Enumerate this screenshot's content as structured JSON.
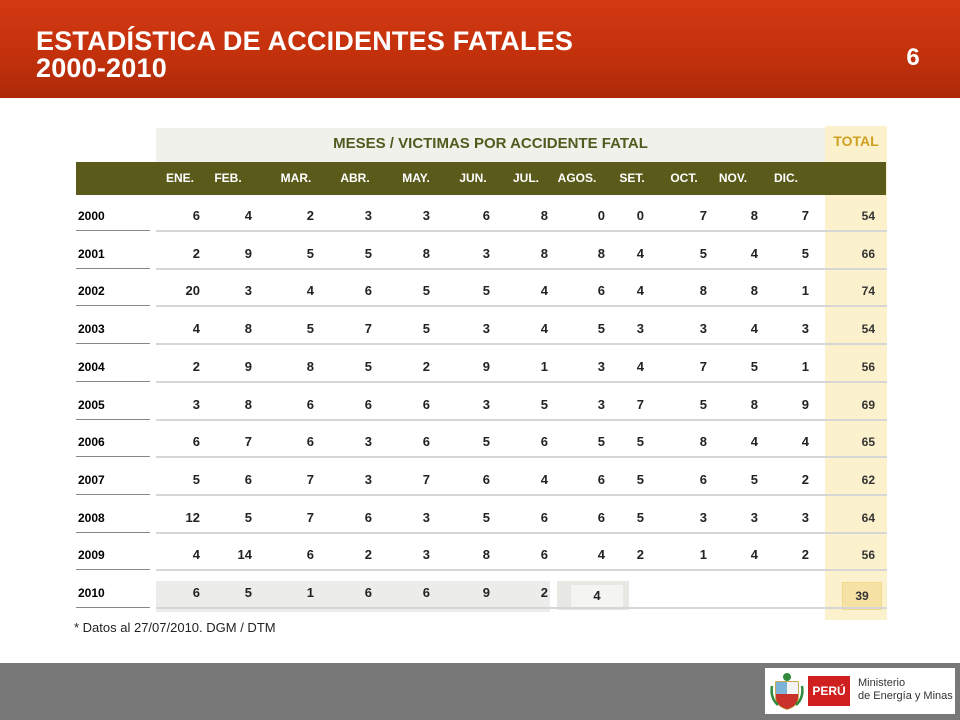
{
  "header": {
    "title_line1": "ESTADÍSTICA DE ACCIDENTES FATALES",
    "title_line2": "2000-2010",
    "slide_number": "6"
  },
  "table": {
    "months_title": "MESES / VICTIMAS POR ACCIDENTE FATAL",
    "total_title": "TOTAL",
    "months": [
      "ENE.",
      "FEB.",
      "MAR.",
      "ABR.",
      "MAY.",
      "JUN.",
      "JUL.",
      "AGOS.",
      "SET.",
      "OCT.",
      "NOV.",
      "DIC."
    ],
    "rows": [
      {
        "year": "2000",
        "values": [
          "6",
          "4",
          "2",
          "3",
          "3",
          "6",
          "8",
          "0",
          "0",
          "7",
          "8",
          "7"
        ],
        "total": "54"
      },
      {
        "year": "2001",
        "values": [
          "2",
          "9",
          "5",
          "5",
          "8",
          "3",
          "8",
          "8",
          "4",
          "5",
          "4",
          "5"
        ],
        "total": "66"
      },
      {
        "year": "2002",
        "values": [
          "20",
          "3",
          "4",
          "6",
          "5",
          "5",
          "4",
          "6",
          "4",
          "8",
          "8",
          "1"
        ],
        "total": "74"
      },
      {
        "year": "2003",
        "values": [
          "4",
          "8",
          "5",
          "7",
          "5",
          "3",
          "4",
          "5",
          "3",
          "3",
          "4",
          "3"
        ],
        "total": "54"
      },
      {
        "year": "2004",
        "values": [
          "2",
          "9",
          "8",
          "5",
          "2",
          "9",
          "1",
          "3",
          "4",
          "7",
          "5",
          "1"
        ],
        "total": "56"
      },
      {
        "year": "2005",
        "values": [
          "3",
          "8",
          "6",
          "6",
          "6",
          "3",
          "5",
          "3",
          "7",
          "5",
          "8",
          "9"
        ],
        "total": "69"
      },
      {
        "year": "2006",
        "values": [
          "6",
          "7",
          "6",
          "3",
          "6",
          "5",
          "6",
          "5",
          "5",
          "8",
          "4",
          "4"
        ],
        "total": "65"
      },
      {
        "year": "2007",
        "values": [
          "5",
          "6",
          "7",
          "3",
          "7",
          "6",
          "4",
          "6",
          "5",
          "6",
          "5",
          "2"
        ],
        "total": "62"
      },
      {
        "year": "2008",
        "values": [
          "12",
          "5",
          "7",
          "6",
          "3",
          "5",
          "6",
          "6",
          "5",
          "3",
          "3",
          "3"
        ],
        "total": "64"
      },
      {
        "year": "2009",
        "values": [
          "4",
          "14",
          "6",
          "2",
          "3",
          "8",
          "6",
          "4",
          "2",
          "1",
          "4",
          "2"
        ],
        "total": "56"
      },
      {
        "year": "2010",
        "values": [
          "6",
          "5",
          "1",
          "6",
          "6",
          "9",
          "2",
          "4",
          "",
          "",
          "",
          ""
        ],
        "total": "39"
      }
    ]
  },
  "footnote": "* Datos al 27/07/2010. DGM / DTM",
  "footer": {
    "country": "PERÚ",
    "ministry_line1": "Ministerio",
    "ministry_line2": "de Energía y Minas"
  },
  "colors": {
    "header": "#c3310c",
    "month_bar": "#5a5a1b",
    "total_band": "#fbf1cc",
    "months_title": "#4f5c1e",
    "total_title": "#d0a021"
  },
  "icons": {
    "emblem": "peru-coat-of-arms-icon"
  }
}
